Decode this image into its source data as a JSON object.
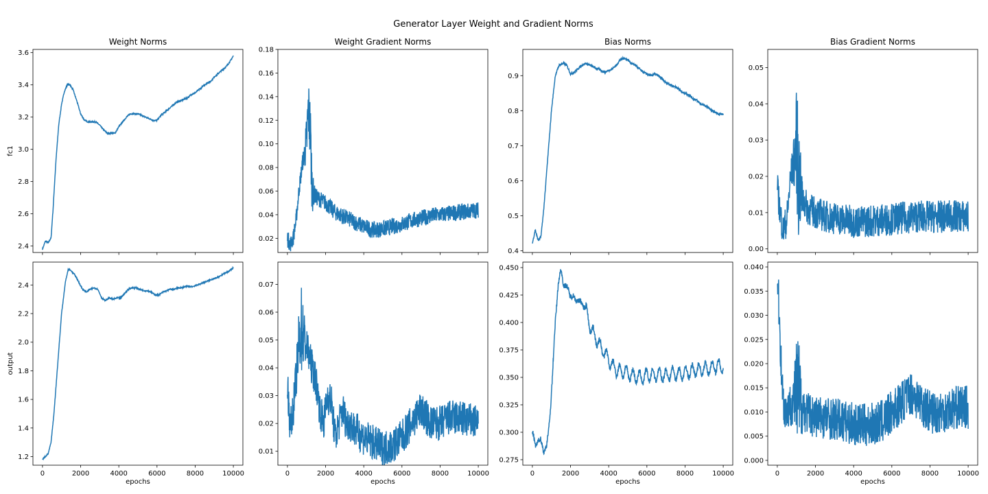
{
  "figure": {
    "title": "Generator Layer Weight and Gradient Norms",
    "line_color": "#1f77b4"
  },
  "chart_data": [
    {
      "type": "line",
      "row": "fc1",
      "column": "Weight Norms",
      "title": "Weight Norms",
      "ylabel": "fc1",
      "xlabel": "",
      "xlim": [
        -500,
        10500
      ],
      "ylim": [
        2.36,
        3.62
      ],
      "xticks": [
        0,
        2000,
        4000,
        6000,
        8000,
        10000
      ],
      "show_xtick_labels": false,
      "yticks": [
        2.4,
        2.6,
        2.8,
        3.0,
        3.2,
        3.4,
        3.6
      ],
      "ytick_labels": [
        "2.4",
        "2.6",
        "2.8",
        "3.0",
        "3.2",
        "3.4",
        "3.6"
      ],
      "x": [
        0,
        150,
        300,
        450,
        550,
        700,
        850,
        1000,
        1150,
        1300,
        1450,
        1600,
        1800,
        2000,
        2200,
        2400,
        2600,
        2800,
        3000,
        3200,
        3400,
        3600,
        3800,
        4000,
        4200,
        4400,
        4600,
        4800,
        5000,
        5200,
        5400,
        5600,
        5800,
        6000,
        6200,
        6400,
        6600,
        6800,
        7000,
        7200,
        7400,
        7600,
        7800,
        8000,
        8200,
        8400,
        8600,
        8800,
        9000,
        9200,
        9400,
        9600,
        9800,
        10000
      ],
      "y": [
        2.38,
        2.43,
        2.42,
        2.45,
        2.62,
        2.92,
        3.15,
        3.28,
        3.36,
        3.4,
        3.4,
        3.37,
        3.3,
        3.22,
        3.18,
        3.17,
        3.17,
        3.17,
        3.15,
        3.12,
        3.1,
        3.1,
        3.1,
        3.14,
        3.17,
        3.2,
        3.22,
        3.22,
        3.22,
        3.21,
        3.2,
        3.19,
        3.18,
        3.18,
        3.21,
        3.23,
        3.25,
        3.27,
        3.29,
        3.3,
        3.31,
        3.32,
        3.34,
        3.35,
        3.37,
        3.39,
        3.41,
        3.42,
        3.45,
        3.47,
        3.49,
        3.51,
        3.54,
        3.58
      ],
      "noise": 0.004
    },
    {
      "type": "line",
      "row": "fc1",
      "column": "Weight Gradient Norms",
      "title": "Weight Gradient Norms",
      "ylabel": "",
      "xlabel": "",
      "xlim": [
        -500,
        10500
      ],
      "ylim": [
        0.008,
        0.18
      ],
      "xticks": [
        0,
        2000,
        4000,
        6000,
        8000,
        10000
      ],
      "show_xtick_labels": false,
      "yticks": [
        0.02,
        0.04,
        0.06,
        0.08,
        0.1,
        0.12,
        0.14,
        0.16,
        0.18
      ],
      "ytick_labels": [
        "0.02",
        "0.04",
        "0.06",
        "0.08",
        "0.10",
        "0.12",
        "0.14",
        "0.16",
        "0.18"
      ],
      "x": [
        0,
        150,
        300,
        450,
        600,
        800,
        1000,
        1100,
        1200,
        1300,
        1500,
        1800,
        2000,
        2500,
        3000,
        3500,
        4000,
        4500,
        5000,
        5500,
        6000,
        6500,
        7000,
        7500,
        8000,
        8500,
        9000,
        9500,
        10000
      ],
      "y": [
        0.02,
        0.015,
        0.02,
        0.035,
        0.06,
        0.085,
        0.1,
        0.13,
        0.11,
        0.06,
        0.055,
        0.052,
        0.05,
        0.042,
        0.038,
        0.034,
        0.03,
        0.027,
        0.028,
        0.03,
        0.032,
        0.035,
        0.037,
        0.039,
        0.04,
        0.041,
        0.042,
        0.043,
        0.044
      ],
      "noise": 0.007,
      "spike_x": 1120,
      "spike_peak": 0.172
    },
    {
      "type": "line",
      "row": "fc1",
      "column": "Bias Norms",
      "title": "Bias Norms",
      "ylabel": "",
      "xlabel": "",
      "xlim": [
        -500,
        10500
      ],
      "ylim": [
        0.395,
        0.975
      ],
      "xticks": [
        0,
        2000,
        4000,
        6000,
        8000,
        10000
      ],
      "show_xtick_labels": false,
      "yticks": [
        0.4,
        0.5,
        0.6,
        0.7,
        0.8,
        0.9
      ],
      "ytick_labels": [
        "0.4",
        "0.5",
        "0.6",
        "0.7",
        "0.8",
        "0.9"
      ],
      "x": [
        0,
        150,
        300,
        450,
        600,
        800,
        1000,
        1200,
        1400,
        1600,
        1800,
        2000,
        2200,
        2400,
        2600,
        2800,
        3000,
        3200,
        3400,
        3600,
        3800,
        4000,
        4200,
        4400,
        4600,
        4800,
        5000,
        5200,
        5400,
        5600,
        5800,
        6000,
        6200,
        6400,
        6600,
        6800,
        7000,
        7200,
        7400,
        7600,
        7800,
        8000,
        8200,
        8400,
        8600,
        8800,
        9000,
        9200,
        9400,
        9600,
        9800,
        10000
      ],
      "y": [
        0.42,
        0.46,
        0.43,
        0.44,
        0.52,
        0.66,
        0.8,
        0.9,
        0.93,
        0.935,
        0.93,
        0.905,
        0.91,
        0.92,
        0.93,
        0.935,
        0.93,
        0.925,
        0.92,
        0.915,
        0.91,
        0.915,
        0.92,
        0.93,
        0.945,
        0.95,
        0.945,
        0.935,
        0.93,
        0.92,
        0.91,
        0.905,
        0.9,
        0.905,
        0.9,
        0.89,
        0.88,
        0.875,
        0.87,
        0.865,
        0.855,
        0.85,
        0.845,
        0.835,
        0.83,
        0.82,
        0.815,
        0.81,
        0.8,
        0.795,
        0.79,
        0.79
      ],
      "noise": 0.003
    },
    {
      "type": "line",
      "row": "fc1",
      "column": "Bias Gradient Norms",
      "title": "Bias Gradient Norms",
      "ylabel": "",
      "xlabel": "",
      "xlim": [
        -500,
        10500
      ],
      "ylim": [
        -0.001,
        0.055
      ],
      "xticks": [
        0,
        2000,
        4000,
        6000,
        8000,
        10000
      ],
      "show_xtick_labels": false,
      "yticks": [
        0.0,
        0.01,
        0.02,
        0.03,
        0.04,
        0.05
      ],
      "ytick_labels": [
        "0.00",
        "0.01",
        "0.02",
        "0.03",
        "0.04",
        "0.05"
      ],
      "x": [
        0,
        150,
        300,
        500,
        700,
        900,
        1000,
        1100,
        1300,
        1600,
        2000,
        2500,
        3000,
        3500,
        4000,
        4500,
        5000,
        5500,
        6000,
        6500,
        7000,
        7500,
        8000,
        8500,
        9000,
        9500,
        10000
      ],
      "y": [
        0.017,
        0.01,
        0.005,
        0.008,
        0.02,
        0.025,
        0.03,
        0.02,
        0.014,
        0.011,
        0.01,
        0.009,
        0.0085,
        0.008,
        0.0075,
        0.0075,
        0.0078,
        0.008,
        0.0082,
        0.0085,
        0.0088,
        0.009,
        0.0088,
        0.0088,
        0.009,
        0.009,
        0.0088
      ],
      "noise": 0.0045,
      "spike_x": 1060,
      "spike_peak": 0.0525
    },
    {
      "type": "line",
      "row": "output",
      "column": "Weight Norms",
      "title": "",
      "ylabel": "output",
      "xlabel": "epochs",
      "xlim": [
        -500,
        10500
      ],
      "ylim": [
        1.14,
        2.56
      ],
      "xticks": [
        0,
        2000,
        4000,
        6000,
        8000,
        10000
      ],
      "show_xtick_labels": true,
      "xtick_labels": [
        "0",
        "2000",
        "4000",
        "6000",
        "8000",
        "10000"
      ],
      "yticks": [
        1.2,
        1.4,
        1.6,
        1.8,
        2.0,
        2.2,
        2.4
      ],
      "ytick_labels": [
        "1.2",
        "1.4",
        "1.6",
        "1.8",
        "2.0",
        "2.2",
        "2.4"
      ],
      "x": [
        0,
        150,
        300,
        450,
        600,
        800,
        1000,
        1200,
        1350,
        1500,
        1700,
        1900,
        2100,
        2300,
        2500,
        2700,
        2900,
        3100,
        3300,
        3500,
        3700,
        3900,
        4100,
        4300,
        4500,
        4700,
        4900,
        5100,
        5300,
        5500,
        5700,
        5900,
        6100,
        6300,
        6500,
        6700,
        6900,
        7100,
        7300,
        7500,
        7700,
        7900,
        8100,
        8300,
        8500,
        8700,
        8900,
        9100,
        9300,
        9500,
        9700,
        9900,
        10000
      ],
      "y": [
        1.18,
        1.2,
        1.22,
        1.3,
        1.5,
        1.85,
        2.2,
        2.42,
        2.51,
        2.5,
        2.47,
        2.42,
        2.37,
        2.35,
        2.37,
        2.38,
        2.37,
        2.31,
        2.29,
        2.31,
        2.3,
        2.31,
        2.31,
        2.34,
        2.37,
        2.38,
        2.38,
        2.37,
        2.36,
        2.36,
        2.35,
        2.33,
        2.33,
        2.35,
        2.36,
        2.37,
        2.37,
        2.38,
        2.38,
        2.39,
        2.39,
        2.39,
        2.4,
        2.41,
        2.42,
        2.43,
        2.44,
        2.45,
        2.46,
        2.48,
        2.49,
        2.51,
        2.52
      ],
      "noise": 0.004
    },
    {
      "type": "line",
      "row": "output",
      "column": "Weight Gradient Norms",
      "title": "",
      "ylabel": "",
      "xlabel": "epochs",
      "xlim": [
        -500,
        10500
      ],
      "ylim": [
        0.005,
        0.078
      ],
      "xticks": [
        0,
        2000,
        4000,
        6000,
        8000,
        10000
      ],
      "show_xtick_labels": true,
      "xtick_labels": [
        "0",
        "2000",
        "4000",
        "6000",
        "8000",
        "10000"
      ],
      "yticks": [
        0.01,
        0.02,
        0.03,
        0.04,
        0.05,
        0.06,
        0.07
      ],
      "ytick_labels": [
        "0.01",
        "0.02",
        "0.03",
        "0.04",
        "0.05",
        "0.06",
        "0.07"
      ],
      "x": [
        0,
        150,
        300,
        500,
        700,
        900,
        1100,
        1300,
        1500,
        1700,
        1900,
        2100,
        2300,
        2500,
        2700,
        2900,
        3100,
        3300,
        3500,
        3700,
        4000,
        4500,
        5000,
        5500,
        6000,
        6500,
        7000,
        7500,
        8000,
        8500,
        9000,
        9500,
        10000
      ],
      "y": [
        0.035,
        0.018,
        0.025,
        0.04,
        0.055,
        0.05,
        0.045,
        0.04,
        0.035,
        0.025,
        0.02,
        0.03,
        0.028,
        0.015,
        0.02,
        0.025,
        0.02,
        0.02,
        0.018,
        0.017,
        0.015,
        0.013,
        0.011,
        0.012,
        0.015,
        0.02,
        0.025,
        0.02,
        0.02,
        0.022,
        0.022,
        0.021,
        0.02
      ],
      "noise": 0.0065,
      "spike_x": 720,
      "spike_peak": 0.075
    },
    {
      "type": "line",
      "row": "output",
      "column": "Bias Norms",
      "title": "",
      "ylabel": "",
      "xlabel": "epochs",
      "xlim": [
        -500,
        10500
      ],
      "ylim": [
        0.27,
        0.455
      ],
      "xticks": [
        0,
        2000,
        4000,
        6000,
        8000,
        10000
      ],
      "show_xtick_labels": true,
      "xtick_labels": [
        "0",
        "2000",
        "4000",
        "6000",
        "8000",
        "10000"
      ],
      "yticks": [
        0.275,
        0.3,
        0.325,
        0.35,
        0.375,
        0.4,
        0.425,
        0.45
      ],
      "ytick_labels": [
        "0.275",
        "0.300",
        "0.325",
        "0.350",
        "0.375",
        "0.400",
        "0.425",
        "0.450"
      ],
      "x": [
        0,
        150,
        300,
        450,
        600,
        750,
        900,
        1050,
        1200,
        1350,
        1500,
        1650,
        1800,
        2000,
        2200,
        2400,
        2600,
        2800,
        3000,
        3200,
        3400,
        3600,
        3800,
        4000,
        4200,
        4400,
        4600,
        4800,
        5000,
        5200,
        5400,
        5600,
        5800,
        6000,
        6200,
        6400,
        6600,
        6800,
        7000,
        7200,
        7400,
        7600,
        7800,
        8000,
        8200,
        8400,
        8600,
        8800,
        9000,
        9200,
        9400,
        9600,
        9800,
        10000
      ],
      "y": [
        0.301,
        0.287,
        0.293,
        0.292,
        0.283,
        0.287,
        0.31,
        0.35,
        0.4,
        0.435,
        0.447,
        0.435,
        0.432,
        0.425,
        0.422,
        0.42,
        0.417,
        0.413,
        0.398,
        0.39,
        0.383,
        0.377,
        0.372,
        0.366,
        0.36,
        0.357,
        0.356,
        0.355,
        0.354,
        0.352,
        0.351,
        0.35,
        0.35,
        0.352,
        0.352,
        0.352,
        0.353,
        0.352,
        0.352,
        0.353,
        0.354,
        0.353,
        0.353,
        0.354,
        0.355,
        0.356,
        0.357,
        0.357,
        0.358,
        0.358,
        0.359,
        0.36,
        0.36,
        0.36
      ],
      "noise": 0.0025,
      "wiggle": 0.0055
    },
    {
      "type": "line",
      "row": "output",
      "column": "Bias Gradient Norms",
      "title": "",
      "ylabel": "",
      "xlabel": "epochs",
      "xlim": [
        -500,
        10500
      ],
      "ylim": [
        -0.001,
        0.041
      ],
      "xticks": [
        0,
        2000,
        4000,
        6000,
        8000,
        10000
      ],
      "show_xtick_labels": true,
      "xtick_labels": [
        "0",
        "2000",
        "4000",
        "6000",
        "8000",
        "10000"
      ],
      "yticks": [
        0.0,
        0.005,
        0.01,
        0.015,
        0.02,
        0.025,
        0.03,
        0.035,
        0.04
      ],
      "ytick_labels": [
        "0.000",
        "0.005",
        "0.010",
        "0.015",
        "0.020",
        "0.025",
        "0.030",
        "0.035",
        "0.040"
      ],
      "x": [
        0,
        100,
        200,
        300,
        400,
        600,
        800,
        1000,
        1200,
        1500,
        2000,
        2500,
        3000,
        3500,
        4000,
        4500,
        5000,
        5500,
        6000,
        6500,
        7000,
        7500,
        8000,
        8500,
        9000,
        9500,
        10000
      ],
      "y": [
        0.039,
        0.03,
        0.02,
        0.013,
        0.01,
        0.011,
        0.012,
        0.014,
        0.012,
        0.01,
        0.009,
        0.009,
        0.0085,
        0.008,
        0.0075,
        0.0072,
        0.0075,
        0.008,
        0.01,
        0.012,
        0.014,
        0.012,
        0.01,
        0.01,
        0.0105,
        0.011,
        0.011
      ],
      "noise": 0.0045,
      "spike_x": 1080,
      "spike_peak": 0.033
    }
  ]
}
